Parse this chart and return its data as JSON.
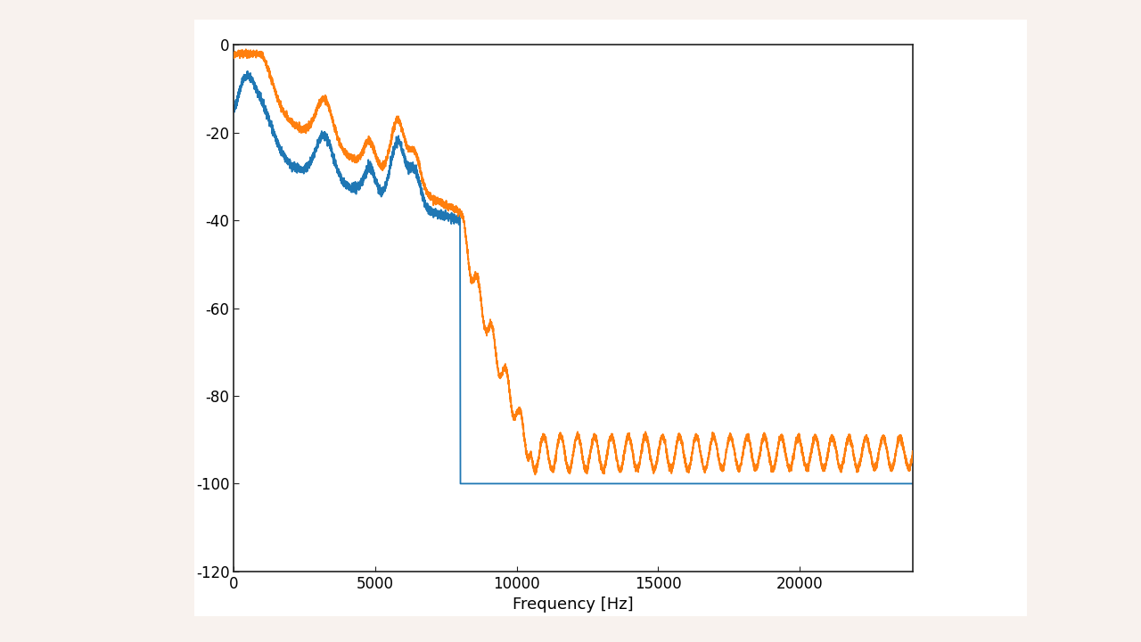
{
  "title": "",
  "xlabel": "Frequency [Hz]",
  "ylabel": "",
  "xlim": [
    0,
    24000
  ],
  "ylim": [
    -120,
    0
  ],
  "yticks": [
    0,
    -20,
    -40,
    -60,
    -80,
    -100,
    -120
  ],
  "xticks": [
    0,
    5000,
    10000,
    15000,
    20000
  ],
  "chart_bg": "#ffffff",
  "fig_bg": "#f5ede8",
  "line_blue": "#1f77b4",
  "line_orange": "#ff7f0e",
  "linewidth": 1.3,
  "amrwb_cutoff_hz": 8000,
  "orange_floor_db": -93,
  "blue_floor_db": -100
}
